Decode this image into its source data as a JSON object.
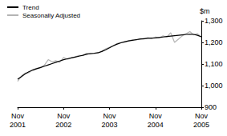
{
  "chart_data": {
    "type": "line",
    "y_label": "$m",
    "categories": [
      "Nov 2001",
      null,
      null,
      null,
      null,
      null,
      null,
      null,
      null,
      null,
      null,
      null,
      "Nov 2002",
      null,
      null,
      null,
      null,
      null,
      null,
      null,
      null,
      null,
      null,
      null,
      "Nov 2003",
      null,
      null,
      null,
      null,
      null,
      null,
      null,
      null,
      null,
      null,
      null,
      "Nov 2004",
      null,
      null,
      null,
      null,
      null,
      null,
      null,
      null,
      null,
      null,
      null,
      "Nov 2005"
    ],
    "series": [
      {
        "name": "Trend",
        "color": "#000000",
        "values": [
          1030,
          1042,
          1055,
          1065,
          1072,
          1078,
          1084,
          1090,
          1096,
          1102,
          1108,
          1114,
          1120,
          1124,
          1128,
          1132,
          1136,
          1140,
          1145,
          1149,
          1150,
          1152,
          1158,
          1166,
          1175,
          1184,
          1192,
          1198,
          1203,
          1207,
          1210,
          1213,
          1215,
          1217,
          1219,
          1220,
          1221,
          1223,
          1225,
          1227,
          1229,
          1231,
          1233,
          1235,
          1237,
          1238,
          1237,
          1233,
          1226
        ]
      },
      {
        "name": "Seasonally Adjusted",
        "color": "#b4b4b4",
        "values": [
          1020,
          1045,
          1058,
          1060,
          1075,
          1080,
          1083,
          1095,
          1120,
          1110,
          1115,
          1108,
          1130,
          1122,
          1128,
          1133,
          1140,
          1138,
          1150,
          1145,
          1148,
          1150,
          1160,
          1170,
          1178,
          1185,
          1195,
          1200,
          1200,
          1208,
          1212,
          1210,
          1218,
          1215,
          1222,
          1218,
          1225,
          1222,
          1230,
          1225,
          1245,
          1200,
          1215,
          1230,
          1240,
          1250,
          1235,
          1240,
          1225
        ]
      }
    ],
    "ylim": [
      900,
      1300
    ],
    "yticks": [
      900,
      1000,
      1100,
      1200,
      1300
    ],
    "grid": false,
    "legend": "top-left"
  }
}
